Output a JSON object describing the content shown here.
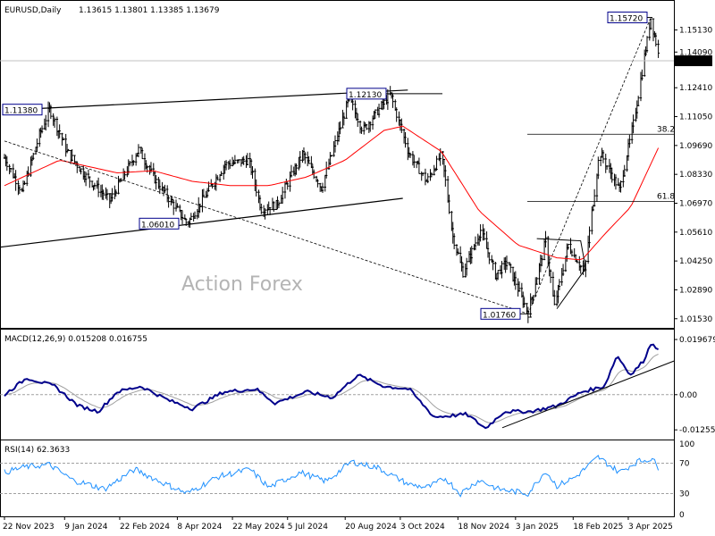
{
  "header": {
    "symbol": "EURUSD,Daily",
    "ohlc": "1.13615 1.13801 1.13385 1.13679"
  },
  "watermark": "Action Forex",
  "colors": {
    "candle": "#000000",
    "ma": "#ff0000",
    "macd": "#00008b",
    "signal": "#a0a0a0",
    "rsi": "#1e90ff",
    "label_border": "#00008b"
  },
  "chart_data": [
    {
      "type": "candlestick",
      "title": "EURUSD,Daily",
      "ylim": [
        1.011,
        1.165
      ],
      "y_ticks": [
        "1.15130",
        "1.14090",
        "1.13679",
        "1.12410",
        "1.11050",
        "1.09690",
        "1.08330",
        "1.06970",
        "1.05610",
        "1.04250",
        "1.02890",
        "1.01530"
      ],
      "current_price": "1.13679",
      "price_labels": [
        "1.15720",
        "1.12130",
        "1.11380",
        "1.06010",
        "1.01760"
      ],
      "fib_levels": [
        {
          "label": "38.2",
          "value": 1.1022
        },
        {
          "label": "61.8",
          "value": 1.0705
        }
      ],
      "swings": [
        {
          "date": "2023-11-22",
          "value": 1.091
        },
        {
          "date": "2023-12-06",
          "value": 1.075
        },
        {
          "date": "2023-12-20",
          "value": 1.102
        },
        {
          "date": "2023-12-28",
          "value": 1.114
        },
        {
          "date": "2024-01-11",
          "value": 1.094
        },
        {
          "date": "2024-01-25",
          "value": 1.083
        },
        {
          "date": "2024-02-14",
          "value": 1.071
        },
        {
          "date": "2024-03-08",
          "value": 1.095
        },
        {
          "date": "2024-03-22",
          "value": 1.08
        },
        {
          "date": "2024-04-16",
          "value": 1.06
        },
        {
          "date": "2024-05-03",
          "value": 1.076
        },
        {
          "date": "2024-05-16",
          "value": 1.088
        },
        {
          "date": "2024-06-04",
          "value": 1.09
        },
        {
          "date": "2024-06-14",
          "value": 1.067
        },
        {
          "date": "2024-06-26",
          "value": 1.069
        },
        {
          "date": "2024-07-17",
          "value": 1.093
        },
        {
          "date": "2024-08-01",
          "value": 1.077
        },
        {
          "date": "2024-08-23",
          "value": 1.119
        },
        {
          "date": "2024-09-03",
          "value": 1.104
        },
        {
          "date": "2024-09-25",
          "value": 1.121
        },
        {
          "date": "2024-10-10",
          "value": 1.093
        },
        {
          "date": "2024-10-24",
          "value": 1.08
        },
        {
          "date": "2024-11-05",
          "value": 1.093
        },
        {
          "date": "2024-11-14",
          "value": 1.054
        },
        {
          "date": "2024-11-22",
          "value": 1.037
        },
        {
          "date": "2024-12-06",
          "value": 1.057
        },
        {
          "date": "2024-12-18",
          "value": 1.036
        },
        {
          "date": "2024-12-27",
          "value": 1.042
        },
        {
          "date": "2025-01-13",
          "value": 1.018
        },
        {
          "date": "2025-01-27",
          "value": 1.052
        },
        {
          "date": "2025-02-03",
          "value": 1.021
        },
        {
          "date": "2025-02-14",
          "value": 1.05
        },
        {
          "date": "2025-02-27",
          "value": 1.037
        },
        {
          "date": "2025-03-11",
          "value": 1.094
        },
        {
          "date": "2025-03-27",
          "value": 1.076
        },
        {
          "date": "2025-04-08",
          "value": 1.11
        },
        {
          "date": "2025-04-21",
          "value": 1.157
        },
        {
          "date": "2025-04-28",
          "value": 1.137
        }
      ],
      "ma": [
        {
          "date": "2023-11-22",
          "value": 1.078
        },
        {
          "date": "2024-01-05",
          "value": 1.09
        },
        {
          "date": "2024-02-20",
          "value": 1.084
        },
        {
          "date": "2024-03-20",
          "value": 1.085
        },
        {
          "date": "2024-04-20",
          "value": 1.08
        },
        {
          "date": "2024-05-20",
          "value": 1.078
        },
        {
          "date": "2024-06-20",
          "value": 1.078
        },
        {
          "date": "2024-07-20",
          "value": 1.082
        },
        {
          "date": "2024-08-20",
          "value": 1.09
        },
        {
          "date": "2024-09-20",
          "value": 1.104
        },
        {
          "date": "2024-10-05",
          "value": 1.106
        },
        {
          "date": "2024-11-05",
          "value": 1.094
        },
        {
          "date": "2024-12-05",
          "value": 1.066
        },
        {
          "date": "2025-01-05",
          "value": 1.05
        },
        {
          "date": "2025-02-05",
          "value": 1.044
        },
        {
          "date": "2025-02-25",
          "value": 1.043
        },
        {
          "date": "2025-03-15",
          "value": 1.055
        },
        {
          "date": "2025-04-05",
          "value": 1.068
        },
        {
          "date": "2025-04-28",
          "value": 1.097
        }
      ]
    },
    {
      "type": "line",
      "title": "MACD(12,26,9) 0.015208 0.016755",
      "ylim": [
        -0.016,
        0.0232
      ],
      "y_ticks": [
        "0.019679",
        "0.00",
        "-0.012552"
      ],
      "macd": [
        {
          "date": "2023-11-22",
          "value": 0.0
        },
        {
          "date": "2023-12-10",
          "value": 0.006
        },
        {
          "date": "2024-01-01",
          "value": 0.003
        },
        {
          "date": "2024-01-20",
          "value": -0.004
        },
        {
          "date": "2024-02-05",
          "value": -0.006
        },
        {
          "date": "2024-02-20",
          "value": 0.001
        },
        {
          "date": "2024-03-10",
          "value": 0.003
        },
        {
          "date": "2024-04-01",
          "value": -0.002
        },
        {
          "date": "2024-04-20",
          "value": -0.005
        },
        {
          "date": "2024-05-15",
          "value": 0.001
        },
        {
          "date": "2024-06-10",
          "value": 0.002
        },
        {
          "date": "2024-06-25",
          "value": -0.003
        },
        {
          "date": "2024-07-20",
          "value": 0.001
        },
        {
          "date": "2024-08-10",
          "value": -0.001
        },
        {
          "date": "2024-08-30",
          "value": 0.007
        },
        {
          "date": "2024-09-20",
          "value": 0.003
        },
        {
          "date": "2024-10-10",
          "value": 0.002
        },
        {
          "date": "2024-10-30",
          "value": -0.008
        },
        {
          "date": "2024-11-25",
          "value": -0.007
        },
        {
          "date": "2024-12-10",
          "value": -0.012
        },
        {
          "date": "2024-12-25",
          "value": -0.006
        },
        {
          "date": "2025-01-15",
          "value": -0.006
        },
        {
          "date": "2025-02-05",
          "value": -0.004
        },
        {
          "date": "2025-02-25",
          "value": 0.001
        },
        {
          "date": "2025-03-15",
          "value": 0.003
        },
        {
          "date": "2025-03-25",
          "value": 0.014
        },
        {
          "date": "2025-04-05",
          "value": 0.007
        },
        {
          "date": "2025-04-15",
          "value": 0.012
        },
        {
          "date": "2025-04-22",
          "value": 0.019
        },
        {
          "date": "2025-04-28",
          "value": 0.0152
        }
      ]
    },
    {
      "type": "line",
      "title": "RSI(14) 62.3633",
      "ylim": [
        0,
        100
      ],
      "y_ticks": [
        "100",
        "70",
        "30",
        "0"
      ],
      "rsi": [
        {
          "date": "2023-11-22",
          "value": 58
        },
        {
          "date": "2023-12-08",
          "value": 65
        },
        {
          "date": "2023-12-28",
          "value": 68
        },
        {
          "date": "2024-01-15",
          "value": 48
        },
        {
          "date": "2024-02-10",
          "value": 36
        },
        {
          "date": "2024-03-05",
          "value": 62
        },
        {
          "date": "2024-03-25",
          "value": 46
        },
        {
          "date": "2024-04-16",
          "value": 30
        },
        {
          "date": "2024-05-10",
          "value": 52
        },
        {
          "date": "2024-06-05",
          "value": 62
        },
        {
          "date": "2024-06-20",
          "value": 38
        },
        {
          "date": "2024-07-15",
          "value": 58
        },
        {
          "date": "2024-08-05",
          "value": 46
        },
        {
          "date": "2024-08-25",
          "value": 72
        },
        {
          "date": "2024-09-15",
          "value": 64
        },
        {
          "date": "2024-10-10",
          "value": 42
        },
        {
          "date": "2024-10-25",
          "value": 38
        },
        {
          "date": "2024-11-08",
          "value": 50
        },
        {
          "date": "2024-11-20",
          "value": 30
        },
        {
          "date": "2024-12-05",
          "value": 48
        },
        {
          "date": "2024-12-20",
          "value": 36
        },
        {
          "date": "2025-01-13",
          "value": 30
        },
        {
          "date": "2025-01-27",
          "value": 60
        },
        {
          "date": "2025-02-05",
          "value": 40
        },
        {
          "date": "2025-02-20",
          "value": 52
        },
        {
          "date": "2025-03-10",
          "value": 78
        },
        {
          "date": "2025-03-27",
          "value": 58
        },
        {
          "date": "2025-04-10",
          "value": 72
        },
        {
          "date": "2025-04-22",
          "value": 76
        },
        {
          "date": "2025-04-28",
          "value": 62
        }
      ]
    }
  ],
  "x_ticks": [
    "22 Nov 2023",
    "9 Jan 2024",
    "22 Feb 2024",
    "8 Apr 2024",
    "22 May 2024",
    "5 Jul 2024",
    "20 Aug 2024",
    "3 Oct 2024",
    "18 Nov 2024",
    "3 Jan 2025",
    "18 Feb 2025",
    "3 Apr 2025"
  ]
}
